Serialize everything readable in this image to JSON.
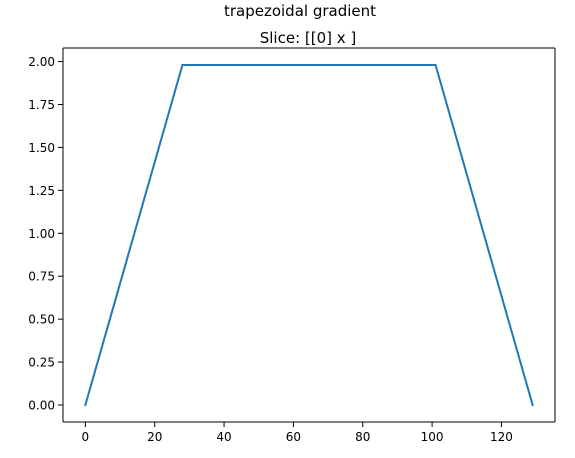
{
  "figure": {
    "suptitle": "trapezoidal gradient",
    "axes_title": "Slice: [[0] x ]"
  },
  "chart_data": {
    "type": "line",
    "title": "trapezoidal gradient",
    "subtitle": "Slice: [[0] x ]",
    "xlabel": "",
    "ylabel": "",
    "xlim": [
      -6.45,
      135.45
    ],
    "ylim": [
      -0.099,
      2.079
    ],
    "xticks": [
      0,
      20,
      40,
      60,
      80,
      100,
      120
    ],
    "xtick_labels": [
      "0",
      "20",
      "40",
      "60",
      "80",
      "100",
      "120"
    ],
    "yticks": [
      0.0,
      0.25,
      0.5,
      0.75,
      1.0,
      1.25,
      1.5,
      1.75,
      2.0
    ],
    "ytick_labels": [
      "0.00",
      "0.25",
      "0.50",
      "0.75",
      "1.00",
      "1.25",
      "1.50",
      "1.75",
      "2.00"
    ],
    "grid": false,
    "series": [
      {
        "color": "#1f77b4",
        "x": [
          0,
          28,
          101,
          129
        ],
        "y": [
          0.0,
          1.98,
          1.98,
          0.0
        ]
      }
    ]
  }
}
